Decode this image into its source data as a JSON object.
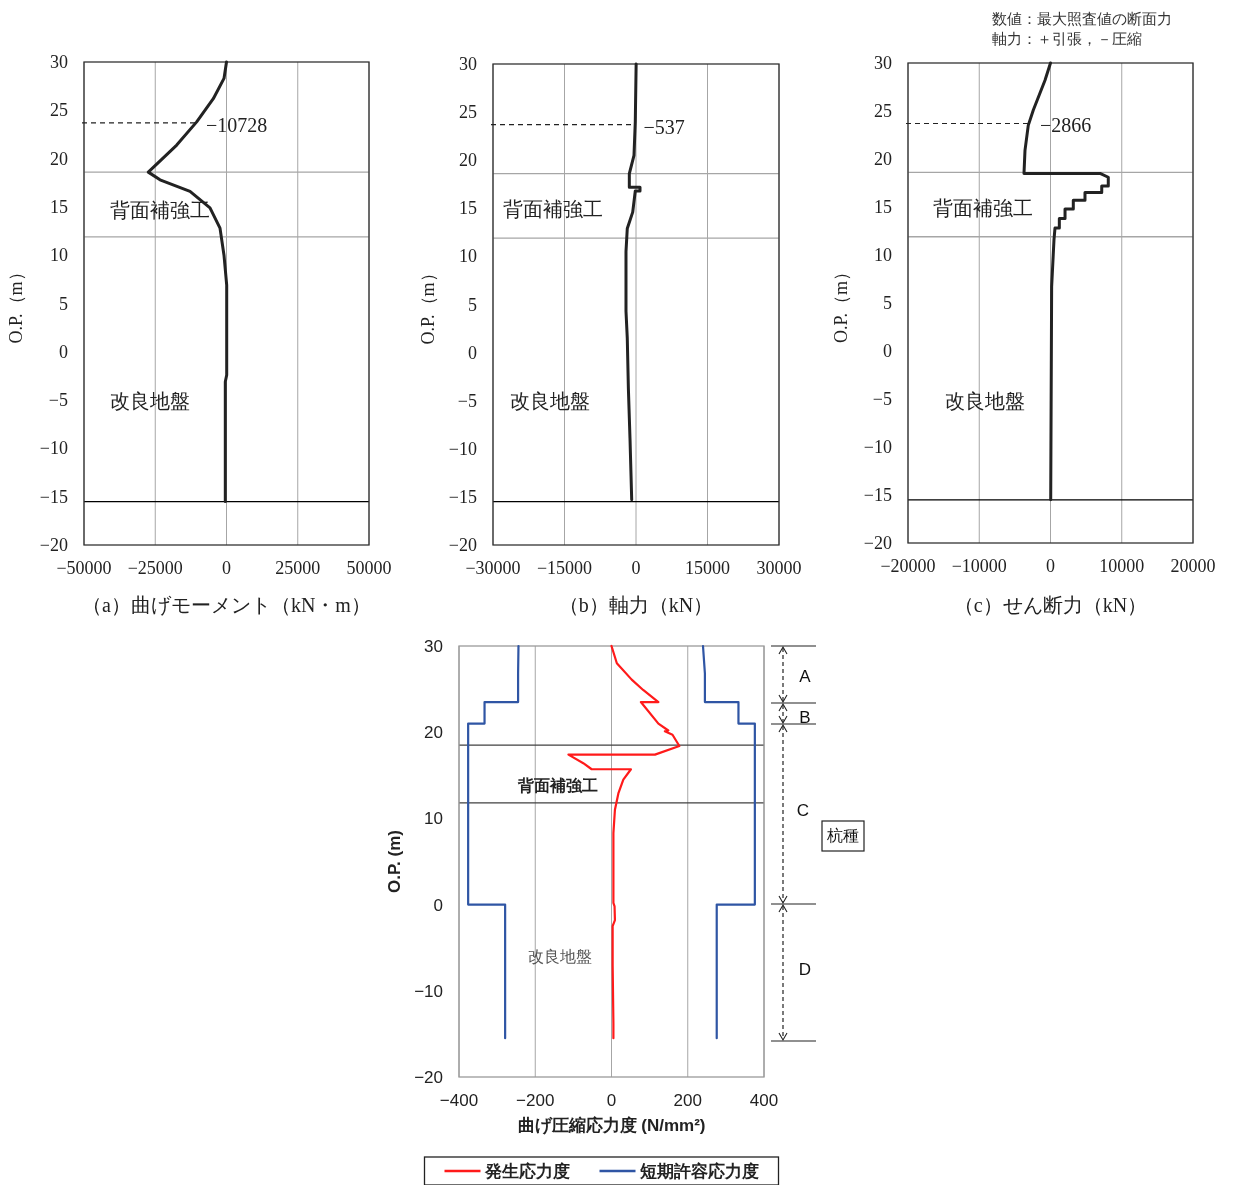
{
  "chart_data": [
    {
      "type": "line",
      "xlabel": "（a）曲げモーメント（kN・m）",
      "ylabel": "O.P.（m）",
      "xlim": [
        -50000,
        50000
      ],
      "xticks": [
        -50000,
        -25000,
        0,
        25000,
        50000
      ],
      "ylim": [
        -20,
        30
      ],
      "yticks": [
        30,
        25,
        20,
        15,
        10,
        5,
        0,
        -5,
        -10,
        -15,
        -20
      ],
      "grid": "x",
      "series": [
        {
          "color": "#222222",
          "x": [
            0,
            -877,
            -4630,
            -10460,
            -17470,
            -27440,
            -23330,
            -12800,
            -5790,
            -2280,
            -880,
            70,
            70,
            -420,
            -420
          ],
          "values": [
            30,
            28.3,
            26.2,
            23.8,
            21.4,
            18.6,
            17.8,
            16.6,
            14.9,
            12.8,
            10.0,
            6.9,
            -2.4,
            -3.1,
            -15.5
          ]
        }
      ],
      "ref_lines": [
        {
          "axis": "y",
          "value": 18.6,
          "color": "#a6a6a6"
        },
        {
          "axis": "y",
          "value": 11.9,
          "color": "#a6a6a6"
        },
        {
          "axis": "y",
          "value": -15.5,
          "color": "#000000"
        }
      ],
      "annotations": [
        "背面補強工",
        "改良地盤",
        {
          "text": "−10728",
          "x": -10728,
          "y": 23.7
        }
      ]
    },
    {
      "type": "line",
      "xlabel": "（b）軸力（kN）",
      "ylabel": "O.P.（m）",
      "xlim": [
        -30000,
        30000
      ],
      "xticks": [
        -30000,
        -15000,
        0,
        15000,
        30000
      ],
      "ylim": [
        -20,
        30
      ],
      "yticks": [
        30,
        25,
        20,
        15,
        10,
        5,
        0,
        -5,
        -10,
        -15,
        -20
      ],
      "grid": "x",
      "series": [
        {
          "color": "#222222",
          "x": [
            30,
            -150,
            -420,
            -1400,
            -1400,
            840,
            840,
            -150,
            -690,
            -1830,
            -2100,
            -2100,
            -1830,
            -1600,
            -1260,
            -900
          ],
          "values": [
            30,
            24,
            20.5,
            18.6,
            17.2,
            17.2,
            16.8,
            16.8,
            14.6,
            12.9,
            10.5,
            4.3,
            1.5,
            -3.7,
            -8.9,
            -15.3
          ]
        }
      ],
      "ref_lines": [
        {
          "axis": "y",
          "value": 18.6,
          "color": "#a6a6a6"
        },
        {
          "axis": "y",
          "value": 11.9,
          "color": "#a6a6a6"
        },
        {
          "axis": "y",
          "value": -15.5,
          "color": "#000000"
        }
      ],
      "annotations": [
        "背面補強工",
        "改良地盤",
        {
          "text": "−537",
          "x": -537,
          "y": 23.7
        }
      ]
    },
    {
      "type": "line",
      "xlabel": "（c）せん断力（kN）",
      "ylabel": "O.P.（m）",
      "xlim": [
        -20000,
        20000
      ],
      "xticks": [
        -20000,
        -10000,
        0,
        10000,
        20000
      ],
      "ylim": [
        -20,
        30
      ],
      "yticks": [
        30,
        25,
        20,
        15,
        10,
        5,
        0,
        -5,
        -10,
        -15,
        -20
      ],
      "grid": "x",
      "series": [
        {
          "color": "#222222",
          "x": [
            0,
            -770,
            -2410,
            -3120,
            -3580,
            -3720,
            6950,
            8110,
            8110,
            7190,
            7190,
            4840,
            4840,
            3200,
            3200,
            2040,
            2040,
            1240,
            1240,
            630,
            490,
            160,
            30
          ],
          "values": [
            30,
            28.2,
            25.1,
            23.5,
            20.9,
            18.5,
            18.5,
            18.1,
            17.2,
            17.2,
            16.5,
            16.5,
            15.7,
            15.7,
            14.8,
            14.8,
            13.8,
            13.8,
            12.8,
            12.8,
            11.6,
            6.7,
            -15.5
          ]
        }
      ],
      "ref_lines": [
        {
          "axis": "y",
          "value": 18.6,
          "color": "#a6a6a6"
        },
        {
          "axis": "y",
          "value": 11.9,
          "color": "#a6a6a6"
        },
        {
          "axis": "y",
          "value": -15.5,
          "color": "#000000"
        }
      ],
      "annotations": [
        "数値：最大照査値の断面力",
        "軸力：＋引張，－圧縮",
        "背面補強工",
        "改良地盤",
        {
          "text": "−2866",
          "x": -2866,
          "y": 23.7
        }
      ]
    },
    {
      "type": "line",
      "xlabel": "曲げ圧縮応力度 (N/mm²)",
      "ylabel": "O.P. (m)",
      "xlim": [
        -400,
        400
      ],
      "xticks": [
        -400,
        -200,
        0,
        200,
        400
      ],
      "ylim": [
        -20,
        30
      ],
      "yticks": [
        30,
        20,
        10,
        0,
        -10,
        -20
      ],
      "grid": "x",
      "legend": "bottom",
      "series": [
        {
          "name": "発生応力度",
          "color": "#ff1a1a",
          "x": [
            0,
            14,
            53,
            83,
            123,
            77,
            123,
            149,
            140,
            160,
            178,
            114,
            -113,
            -74,
            -52,
            51,
            31,
            18,
            9,
            5,
            5,
            8,
            9,
            3,
            3,
            5,
            5
          ],
          "values": [
            30,
            28,
            26.1,
            24.9,
            23.5,
            23.5,
            21.0,
            20.2,
            20.1,
            19.7,
            18.4,
            17.4,
            17.4,
            16.4,
            15.7,
            15.7,
            14.5,
            12.9,
            11.0,
            8.3,
            0.2,
            -0.2,
            -1.8,
            -2.5,
            -7.0,
            -13.8,
            -15.5
          ]
        },
        {
          "name": "短期許容応力度",
          "color": "#2f55a4",
          "x": [
            240,
            245,
            245,
            333,
            333,
            376,
            376,
            276,
            276
          ],
          "values": [
            30,
            26.8,
            23.5,
            23.5,
            21,
            21,
            0,
            0,
            -15.5
          ]
        },
        {
          "color": "#2f55a4",
          "x": [
            -244,
            -245,
            -245,
            -333,
            -333,
            -376,
            -376,
            -279,
            -279
          ],
          "values": [
            30,
            26.8,
            23.5,
            23.5,
            21,
            21,
            0,
            0,
            -15.5
          ]
        }
      ],
      "ref_lines": [
        {
          "axis": "y",
          "value": 18.5,
          "color": "#404040"
        },
        {
          "axis": "y",
          "value": 11.8,
          "color": "#404040"
        }
      ],
      "annotations": [
        "背面補強工",
        "改良地盤",
        "杭種",
        "A",
        "B",
        "C",
        "D"
      ]
    }
  ]
}
